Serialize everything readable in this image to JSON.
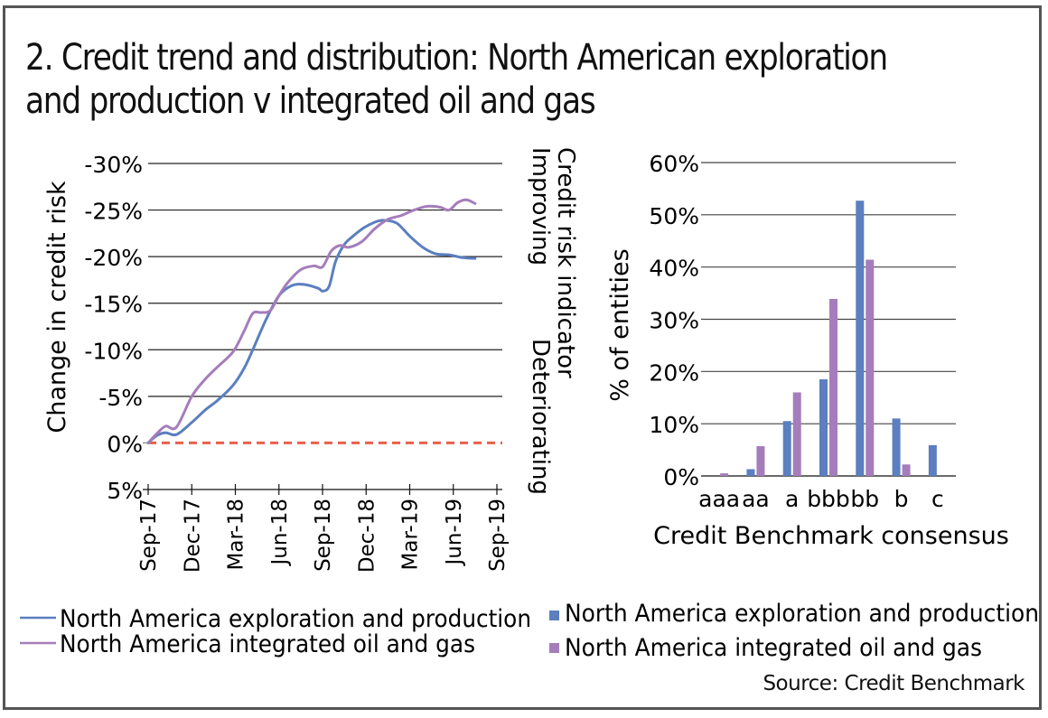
{
  "title": "2. Credit trend and distribution: North American exploration and production v integrated oil and gas",
  "source": "Source: Credit Benchmark",
  "colors": {
    "exploration": "#5b7fbf",
    "integrated": "#a57dba",
    "zero_line": "#e8604c",
    "grid": "#222222",
    "frame": "#555555"
  },
  "chart_data": [
    {
      "type": "line",
      "title": "",
      "ylabel": "Change in credit risk",
      "right_label": "Credit risk indicator",
      "right_label_top": "Improving",
      "right_label_bottom": "Deteriorating",
      "ylim": [
        5,
        -30
      ],
      "y_inverted": true,
      "y_ticks": [
        -30,
        -25,
        -20,
        -15,
        -10,
        -5,
        0,
        5
      ],
      "y_tick_labels": [
        "-30%",
        "-25%",
        "-20%",
        "-15%",
        "-10%",
        "-5%",
        "0%",
        "5%"
      ],
      "x_ticks": [
        "Sep-17",
        "Dec-17",
        "Mar-18",
        "Jun-18",
        "Sep-18",
        "Dec-18",
        "Mar-19",
        "Jun-19",
        "Sep-19"
      ],
      "grid": true,
      "reference_line": {
        "value": 0,
        "style": "dashed"
      },
      "x_unit": "quarters since Sep-17",
      "series": [
        {
          "name": "North America exploration and production",
          "x": [
            0,
            0.2,
            0.4,
            0.65,
            1.0,
            1.3,
            1.6,
            1.95,
            2.2,
            2.4,
            2.7,
            3.0,
            3.3,
            3.6,
            3.9,
            4.0,
            4.15,
            4.3,
            4.5,
            4.7,
            4.95,
            5.2,
            5.4,
            5.7,
            6.0,
            6.3,
            6.6,
            6.9,
            7.2,
            7.5
          ],
          "values": [
            0,
            -0.8,
            -1.1,
            -0.9,
            -2.2,
            -3.5,
            -4.6,
            -6.2,
            -8.0,
            -10.0,
            -13.2,
            -15.8,
            -16.9,
            -17.0,
            -16.6,
            -16.3,
            -16.8,
            -19.5,
            -21.3,
            -22.2,
            -23.1,
            -23.7,
            -23.9,
            -23.6,
            -22.2,
            -21.0,
            -20.3,
            -20.2,
            -19.9,
            -19.8
          ]
        },
        {
          "name": "North America integrated oil and gas",
          "x": [
            0,
            0.2,
            0.4,
            0.65,
            1.0,
            1.3,
            1.6,
            1.95,
            2.2,
            2.4,
            2.6,
            2.8,
            3.0,
            3.2,
            3.5,
            3.8,
            4.0,
            4.2,
            4.4,
            4.6,
            4.9,
            5.2,
            5.5,
            5.8,
            6.1,
            6.4,
            6.7,
            6.9,
            7.1,
            7.3,
            7.5
          ],
          "values": [
            0,
            -1.0,
            -1.8,
            -1.7,
            -5.0,
            -6.8,
            -8.2,
            -9.8,
            -12.0,
            -13.9,
            -14.0,
            -14.2,
            -15.8,
            -17.2,
            -18.6,
            -19.0,
            -18.9,
            -20.6,
            -21.2,
            -21.0,
            -21.6,
            -23.0,
            -24.0,
            -24.4,
            -25.0,
            -25.4,
            -25.3,
            -25.0,
            -25.8,
            -26.1,
            -25.7
          ]
        }
      ]
    },
    {
      "type": "bar",
      "title": "",
      "xlabel": "Credit Benchmark consensus",
      "ylabel": "% of entities",
      "ylim": [
        0,
        60
      ],
      "y_ticks": [
        0,
        10,
        20,
        30,
        40,
        50,
        60
      ],
      "y_tick_labels": [
        "0%",
        "10%",
        "20%",
        "30%",
        "40%",
        "50%",
        "60%"
      ],
      "grid": true,
      "categories": [
        "aaa",
        "aa",
        "a",
        "bbb",
        "bb",
        "b",
        "c"
      ],
      "series": [
        {
          "name": "North America exploration and production",
          "values": [
            0.0,
            1.3,
            10.5,
            18.5,
            52.7,
            11.0,
            5.9
          ]
        },
        {
          "name": "North America integrated oil and gas",
          "values": [
            0.5,
            5.7,
            16.0,
            33.9,
            41.4,
            2.2,
            0.0
          ]
        }
      ]
    }
  ]
}
